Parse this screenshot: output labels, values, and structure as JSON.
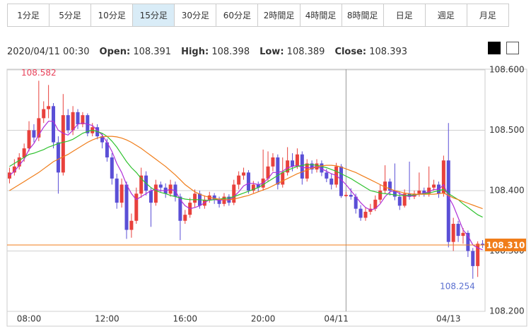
{
  "tabs": {
    "items": [
      "1分足",
      "5分足",
      "10分足",
      "15分足",
      "30分足",
      "60分足",
      "2時間足",
      "4時間足",
      "8時間足",
      "日足",
      "週足",
      "月足"
    ],
    "selected": 3
  },
  "info": {
    "datetime": "2020/04/11 00:30",
    "fields": [
      "Open:",
      "High:",
      "Low:",
      "Close:"
    ],
    "crosshair_index": 69
  },
  "chart_data": {
    "type": "candlestick",
    "categories": [
      null,
      null,
      null,
      null,
      "08:00",
      null,
      null,
      null,
      null,
      null,
      null,
      null,
      null,
      null,
      null,
      null,
      null,
      null,
      null,
      null,
      "12:00",
      null,
      null,
      null,
      null,
      null,
      null,
      null,
      null,
      null,
      null,
      null,
      null,
      null,
      null,
      null,
      "16:00",
      null,
      null,
      null,
      null,
      null,
      null,
      null,
      null,
      null,
      null,
      null,
      null,
      null,
      null,
      null,
      "20:00",
      null,
      null,
      null,
      null,
      null,
      null,
      null,
      null,
      null,
      null,
      null,
      null,
      null,
      null,
      "04/11",
      null,
      null,
      null,
      null,
      null,
      null,
      null,
      null,
      null,
      null,
      null,
      null,
      null,
      null,
      null,
      null,
      null,
      null,
      null,
      null,
      null,
      null,
      "04/13",
      null,
      null,
      null,
      null,
      null,
      null,
      null
    ],
    "open": [
      108.42,
      108.43,
      108.44,
      108.455,
      108.47,
      108.5,
      108.488,
      108.52,
      108.535,
      108.54,
      108.48,
      108.43,
      108.525,
      108.5,
      108.53,
      108.51,
      108.525,
      108.495,
      108.505,
      108.49,
      108.48,
      108.455,
      108.42,
      108.38,
      108.41,
      108.335,
      108.35,
      108.395,
      108.425,
      108.4,
      108.38,
      108.41,
      108.405,
      108.395,
      108.41,
      108.39,
      108.35,
      108.36,
      108.38,
      108.395,
      108.375,
      108.385,
      108.392,
      108.385,
      108.378,
      108.39,
      108.38,
      108.41,
      108.425,
      108.43,
      108.4,
      108.41,
      108.405,
      108.42,
      108.44,
      108.455,
      108.41,
      108.43,
      108.45,
      108.44,
      108.46,
      108.42,
      108.445,
      108.435,
      108.445,
      108.43,
      108.42,
      108.41,
      108.44,
      108.391,
      108.393,
      108.39,
      108.37,
      108.355,
      108.365,
      108.37,
      108.385,
      108.4,
      108.415,
      108.4,
      108.39,
      108.375,
      108.395,
      108.39,
      108.395,
      108.4,
      108.395,
      108.405,
      108.41,
      108.395,
      108.45,
      108.315,
      108.345,
      108.325,
      108.33,
      108.3,
      108.275,
      108.312
    ],
    "high": [
      108.438,
      108.452,
      108.462,
      108.478,
      108.515,
      108.51,
      108.582,
      108.548,
      108.575,
      108.545,
      108.49,
      108.56,
      108.535,
      108.54,
      108.535,
      108.53,
      108.528,
      108.512,
      108.51,
      108.495,
      108.486,
      108.462,
      108.428,
      108.42,
      108.415,
      108.362,
      108.405,
      108.438,
      108.432,
      108.405,
      108.418,
      108.415,
      108.412,
      108.418,
      108.415,
      108.395,
      108.368,
      108.388,
      108.402,
      108.4,
      108.392,
      108.398,
      108.396,
      108.39,
      108.396,
      108.394,
      108.418,
      108.432,
      108.438,
      108.434,
      108.416,
      108.415,
      108.468,
      108.465,
      108.462,
      108.46,
      108.455,
      108.472,
      108.462,
      108.47,
      108.465,
      108.452,
      108.45,
      108.452,
      108.45,
      108.436,
      108.428,
      108.446,
      108.444,
      108.398,
      108.404,
      108.395,
      108.376,
      108.372,
      108.378,
      108.392,
      108.41,
      108.442,
      108.42,
      108.445,
      108.398,
      108.402,
      108.448,
      108.4,
      108.43,
      108.405,
      108.44,
      108.418,
      108.415,
      108.458,
      108.512,
      108.355,
      108.35,
      108.338,
      108.334,
      108.305,
      108.316,
      108.318
    ],
    "low": [
      108.412,
      108.425,
      108.435,
      108.448,
      108.465,
      108.48,
      108.482,
      108.512,
      108.52,
      108.47,
      108.395,
      108.425,
      108.495,
      108.492,
      108.502,
      108.505,
      108.49,
      108.49,
      108.485,
      108.47,
      108.448,
      108.41,
      108.37,
      108.372,
      108.32,
      108.322,
      108.345,
      108.388,
      108.392,
      108.34,
      108.375,
      108.398,
      108.388,
      108.39,
      108.382,
      108.318,
      108.345,
      108.355,
      108.372,
      108.37,
      108.37,
      108.38,
      108.378,
      108.372,
      108.374,
      108.375,
      108.376,
      108.402,
      108.418,
      108.395,
      108.396,
      108.398,
      108.4,
      108.415,
      108.432,
      108.402,
      108.405,
      108.425,
      108.432,
      108.436,
      108.41,
      108.415,
      108.428,
      108.43,
      108.424,
      108.414,
      108.402,
      108.405,
      108.388,
      108.389,
      108.385,
      108.362,
      108.35,
      108.35,
      108.36,
      108.366,
      108.38,
      108.395,
      108.392,
      108.384,
      108.368,
      108.372,
      108.385,
      108.386,
      108.39,
      108.39,
      108.39,
      108.4,
      108.388,
      108.39,
      108.306,
      108.3,
      108.315,
      108.312,
      108.29,
      108.254,
      108.257,
      108.305
    ],
    "close": [
      108.43,
      108.44,
      108.455,
      108.47,
      108.5,
      108.488,
      108.52,
      108.535,
      108.54,
      108.48,
      108.43,
      108.525,
      108.5,
      108.53,
      108.51,
      108.525,
      108.495,
      108.505,
      108.49,
      108.48,
      108.455,
      108.42,
      108.38,
      108.41,
      108.335,
      108.35,
      108.395,
      108.425,
      108.4,
      108.38,
      108.41,
      108.405,
      108.395,
      108.41,
      108.39,
      108.35,
      108.36,
      108.38,
      108.395,
      108.375,
      108.385,
      108.392,
      108.385,
      108.378,
      108.39,
      108.38,
      108.41,
      108.425,
      108.43,
      108.4,
      108.41,
      108.405,
      108.42,
      108.44,
      108.455,
      108.41,
      108.43,
      108.45,
      108.44,
      108.46,
      108.42,
      108.445,
      108.435,
      108.445,
      108.43,
      108.42,
      108.41,
      108.44,
      108.391,
      108.393,
      108.39,
      108.37,
      108.355,
      108.365,
      108.37,
      108.385,
      108.4,
      108.415,
      108.4,
      108.39,
      108.375,
      108.395,
      108.39,
      108.395,
      108.4,
      108.395,
      108.405,
      108.41,
      108.395,
      108.45,
      108.315,
      108.345,
      108.325,
      108.33,
      108.3,
      108.275,
      108.312,
      108.31
    ],
    "up_color": "#e8413c",
    "down_color": "#5a4fd6",
    "moving_averages": [
      {
        "color": "#b02fd8",
        "values": [
          108.425,
          108.432,
          108.442,
          108.452,
          108.468,
          108.478,
          108.492,
          108.505,
          108.515,
          108.515,
          108.5,
          108.495,
          108.492,
          108.5,
          108.51,
          108.512,
          108.51,
          108.508,
          108.5,
          108.492,
          108.48,
          108.465,
          108.445,
          108.43,
          108.41,
          108.395,
          108.385,
          108.39,
          108.395,
          108.4,
          108.402,
          108.4,
          108.4,
          108.402,
          108.4,
          108.385,
          108.375,
          108.37,
          108.372,
          108.375,
          108.38,
          108.385,
          108.385,
          108.384,
          108.385,
          108.384,
          108.39,
          108.398,
          108.408,
          108.412,
          108.412,
          108.41,
          108.412,
          108.42,
          108.43,
          108.43,
          108.432,
          108.438,
          108.44,
          108.442,
          108.438,
          108.438,
          108.438,
          108.44,
          108.436,
          108.432,
          108.428,
          108.425,
          108.418,
          108.41,
          108.4,
          108.39,
          108.38,
          108.372,
          108.368,
          108.37,
          108.378,
          108.39,
          108.398,
          108.4,
          108.395,
          108.392,
          108.39,
          108.392,
          108.394,
          108.396,
          108.398,
          108.402,
          108.402,
          108.41,
          108.39,
          108.375,
          108.355,
          108.335,
          108.325,
          108.31,
          108.305,
          108.302
        ]
      },
      {
        "color": "#2fc22f",
        "values": [
          108.44,
          108.445,
          108.45,
          108.455,
          108.46,
          108.462,
          108.465,
          108.468,
          108.472,
          108.475,
          108.478,
          108.48,
          108.482,
          108.485,
          108.49,
          108.495,
          108.498,
          108.5,
          108.498,
          108.495,
          108.49,
          108.482,
          108.472,
          108.46,
          108.448,
          108.438,
          108.43,
          108.42,
          108.412,
          108.405,
          108.4,
          108.397,
          108.395,
          108.392,
          108.39,
          108.388,
          108.386,
          108.385,
          108.385,
          108.385,
          108.384,
          108.384,
          108.385,
          108.386,
          108.387,
          108.388,
          108.39,
          108.393,
          108.396,
          108.399,
          108.402,
          108.405,
          108.41,
          108.415,
          108.42,
          108.425,
          108.43,
          108.434,
          108.437,
          108.44,
          108.442,
          108.443,
          108.443,
          108.442,
          108.44,
          108.438,
          108.435,
          108.432,
          108.428,
          108.424,
          108.42,
          108.415,
          108.41,
          108.405,
          108.4,
          108.398,
          108.396,
          108.395,
          108.394,
          108.393,
          108.392,
          108.392,
          108.392,
          108.393,
          108.394,
          108.395,
          108.396,
          108.398,
          108.4,
          108.402,
          108.395,
          108.39,
          108.385,
          108.378,
          108.372,
          108.366,
          108.36,
          108.356
        ]
      },
      {
        "color": "#f07d1a",
        "values": [
          108.4,
          108.405,
          108.41,
          108.415,
          108.42,
          108.425,
          108.43,
          108.436,
          108.442,
          108.448,
          108.452,
          108.456,
          108.46,
          108.465,
          108.47,
          108.475,
          108.48,
          108.484,
          108.487,
          108.489,
          108.49,
          108.49,
          108.489,
          108.487,
          108.484,
          108.48,
          108.475,
          108.47,
          108.464,
          108.458,
          108.452,
          108.446,
          108.44,
          108.433,
          108.426,
          108.418,
          108.41,
          108.404,
          108.398,
          108.394,
          108.391,
          108.389,
          108.387,
          108.386,
          108.385,
          108.385,
          108.386,
          108.388,
          108.39,
          108.392,
          108.395,
          108.398,
          108.401,
          108.404,
          108.408,
          108.412,
          108.416,
          108.42,
          108.424,
          108.428,
          108.431,
          108.434,
          108.437,
          108.439,
          108.441,
          108.442,
          108.442,
          108.441,
          108.439,
          108.436,
          108.433,
          108.43,
          108.426,
          108.422,
          108.418,
          108.414,
          108.41,
          108.406,
          108.403,
          108.4,
          108.398,
          108.396,
          108.395,
          108.394,
          108.394,
          108.394,
          108.394,
          108.394,
          108.395,
          108.396,
          108.392,
          108.388,
          108.385,
          108.382,
          108.379,
          108.376,
          108.373,
          108.37
        ]
      }
    ],
    "ylim": [
      108.2,
      108.6
    ],
    "yticks": [
      {
        "value": 108.2,
        "label": "108.200"
      },
      {
        "value": 108.3,
        "label": "108.300"
      },
      {
        "value": 108.4,
        "label": "108.400"
      },
      {
        "value": 108.5,
        "label": "108.500"
      },
      {
        "value": 108.6,
        "label": "108.600"
      }
    ],
    "grid": true,
    "current_price": {
      "value": 108.31,
      "label": "108.310",
      "color": "#f07d1a"
    },
    "annotations": [
      {
        "value": 108.582,
        "label": "108.582",
        "color": "#e8415a"
      },
      {
        "value": 108.254,
        "label": "108.254",
        "color": "#5a6fd0"
      }
    ]
  }
}
